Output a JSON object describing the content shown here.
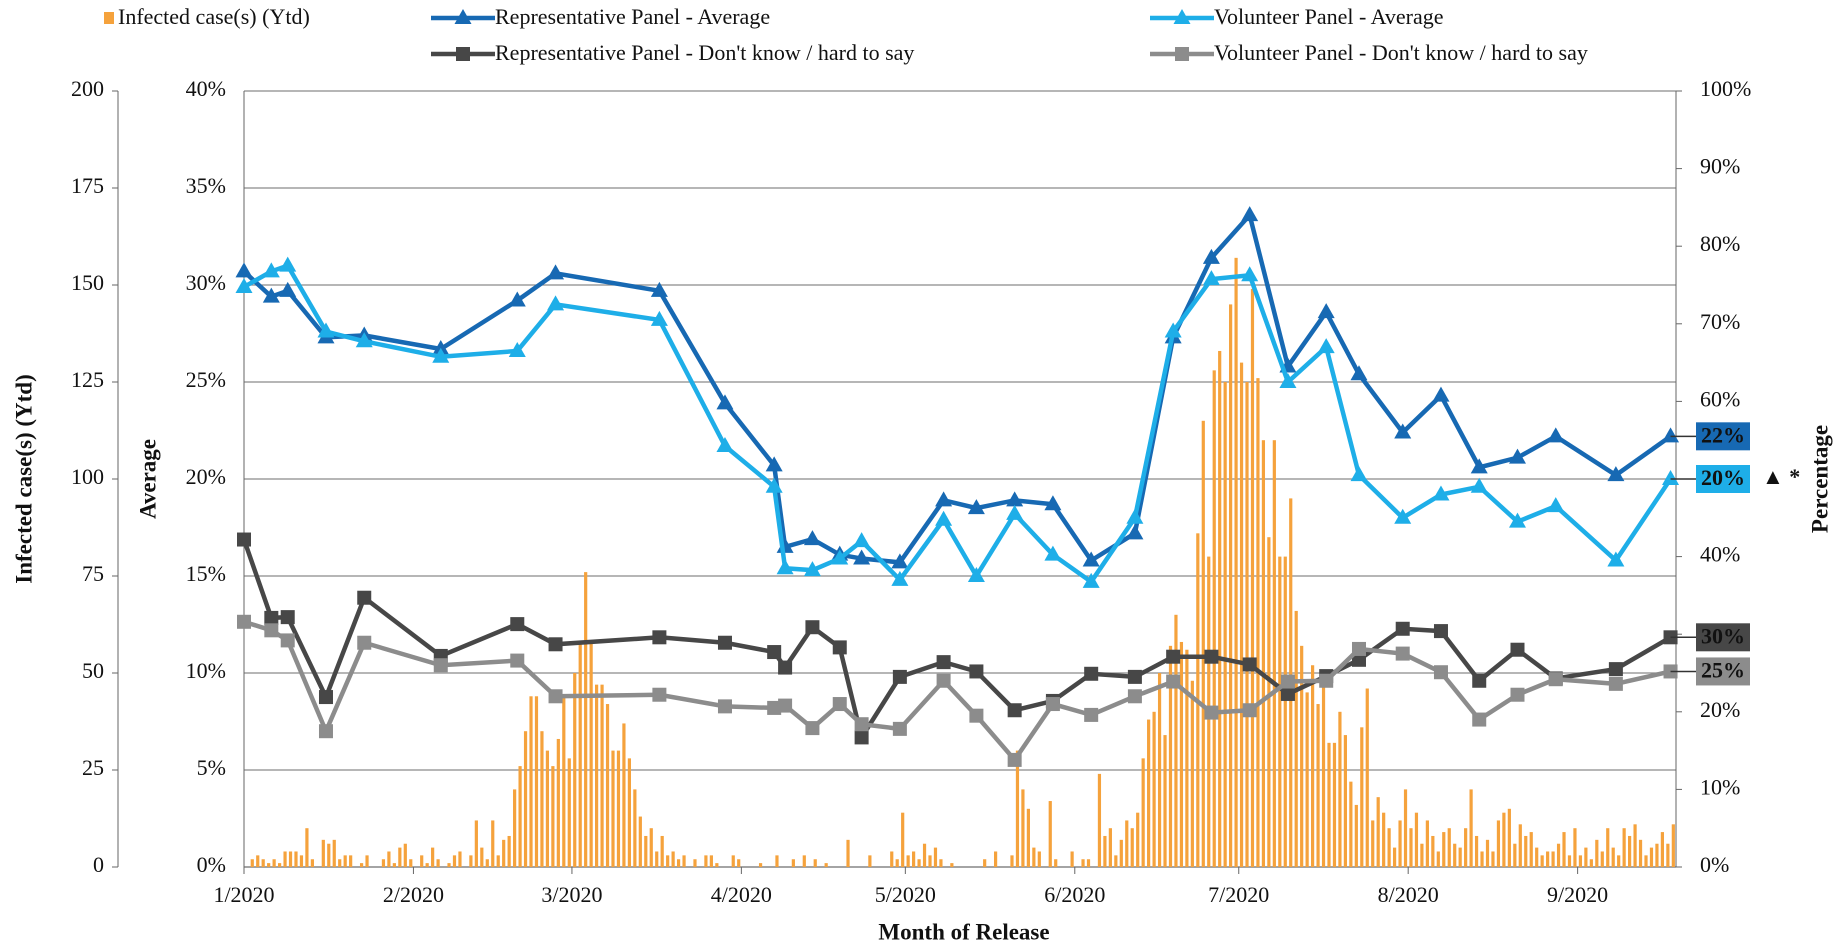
{
  "chart_data": {
    "type": "combo",
    "xlabel": "Month of Release",
    "ylabel": "Infected case(s) (Ytd)",
    "y2label": "Average",
    "y3label": "Percentage",
    "annotation": "▲ *",
    "grid": true,
    "xlim": [
      0,
      262
    ],
    "xticks": [
      {
        "value": 0,
        "label": "1/2020"
      },
      {
        "value": 31,
        "label": "2/2020"
      },
      {
        "value": 60,
        "label": "3/2020"
      },
      {
        "value": 91,
        "label": "4/2020"
      },
      {
        "value": 121,
        "label": "5/2020"
      },
      {
        "value": 152,
        "label": "6/2020"
      },
      {
        "value": 182,
        "label": "7/2020"
      },
      {
        "value": 213,
        "label": "8/2020"
      },
      {
        "value": 244,
        "label": "9/2020"
      }
    ],
    "ylim": [
      0,
      200
    ],
    "yticks": [
      0,
      25,
      50,
      75,
      100,
      125,
      150,
      175,
      200
    ],
    "y2lim": [
      0,
      40
    ],
    "y2ticks": [
      {
        "value": 0,
        "label": "0%"
      },
      {
        "value": 5,
        "label": "5%"
      },
      {
        "value": 10,
        "label": "10%"
      },
      {
        "value": 15,
        "label": "15%"
      },
      {
        "value": 20,
        "label": "20%"
      },
      {
        "value": 25,
        "label": "25%"
      },
      {
        "value": 30,
        "label": "30%"
      },
      {
        "value": 35,
        "label": "35%"
      },
      {
        "value": 40,
        "label": "40%"
      }
    ],
    "y3lim": [
      0,
      100
    ],
    "y3ticks": [
      {
        "value": 0,
        "label": "0%"
      },
      {
        "value": 10,
        "label": "10%"
      },
      {
        "value": 20,
        "label": "20%"
      },
      {
        "value": 30,
        "label": "30%"
      },
      {
        "value": 40,
        "label": "40%"
      },
      {
        "value": 50,
        "label": "50%"
      },
      {
        "value": 60,
        "label": "60%"
      },
      {
        "value": 70,
        "label": "70%"
      },
      {
        "value": 80,
        "label": "80%"
      },
      {
        "value": 90,
        "label": "90%"
      },
      {
        "value": 100,
        "label": "100%"
      }
    ],
    "series": [
      {
        "name": "Infected case(s) (Ytd)",
        "type": "bar",
        "axis": "y",
        "color": "#f5a23c",
        "x": [
          0,
          1,
          2,
          3,
          4,
          5,
          6,
          7,
          8,
          9,
          10,
          11,
          12,
          13,
          14,
          15,
          16,
          17,
          18,
          19,
          20,
          21,
          22,
          23,
          24,
          25,
          26,
          27,
          28,
          29,
          30,
          31,
          32,
          33,
          34,
          35,
          36,
          37,
          38,
          39,
          40,
          41,
          42,
          43,
          44,
          45,
          46,
          47,
          48,
          49,
          50,
          51,
          52,
          53,
          54,
          55,
          56,
          57,
          58,
          59,
          60,
          61,
          62,
          63,
          64,
          65,
          66,
          67,
          68,
          69,
          70,
          71,
          72,
          73,
          74,
          75,
          76,
          77,
          78,
          79,
          80,
          81,
          82,
          83,
          84,
          85,
          86,
          87,
          88,
          89,
          90,
          91,
          92,
          93,
          94,
          95,
          96,
          97,
          98,
          99,
          100,
          101,
          102,
          103,
          104,
          105,
          106,
          107,
          108,
          109,
          110,
          111,
          112,
          113,
          114,
          115,
          116,
          117,
          118,
          119,
          120,
          121,
          122,
          123,
          124,
          125,
          126,
          127,
          128,
          129,
          130,
          131,
          132,
          133,
          134,
          135,
          136,
          137,
          138,
          139,
          140,
          141,
          142,
          143,
          144,
          145,
          146,
          147,
          148,
          149,
          150,
          151,
          152,
          153,
          154,
          155,
          156,
          157,
          158,
          159,
          160,
          161,
          162,
          163,
          164,
          165,
          166,
          167,
          168,
          169,
          170,
          171,
          172,
          173,
          174,
          175,
          176,
          177,
          178,
          179,
          180,
          181,
          182,
          183,
          184,
          185,
          186,
          187,
          188,
          189,
          190,
          191,
          192,
          193,
          194,
          195,
          196,
          197,
          198,
          199,
          200,
          201,
          202,
          203,
          204,
          205,
          206,
          207,
          208,
          209,
          210,
          211,
          212,
          213,
          214,
          215,
          216,
          217,
          218,
          219,
          220,
          221,
          222,
          223,
          224,
          225,
          226,
          227,
          228,
          229,
          230,
          231,
          232,
          233,
          234,
          235,
          236,
          237,
          238,
          239,
          240,
          241,
          242,
          243,
          244,
          245,
          246,
          247,
          248,
          249,
          250,
          251,
          252,
          253,
          254,
          255,
          256,
          257,
          258,
          259,
          260,
          261
        ],
        "values": [
          0,
          2,
          3,
          2,
          1,
          2,
          1,
          4,
          4,
          4,
          3,
          10,
          2,
          0,
          7,
          6,
          7,
          2,
          3,
          3,
          0,
          1,
          3,
          0,
          0,
          2,
          4,
          1,
          5,
          6,
          2,
          0,
          3,
          1,
          5,
          2,
          0,
          1,
          3,
          4,
          0,
          3,
          12,
          5,
          2,
          12,
          3,
          7,
          8,
          20,
          26,
          35,
          44,
          44,
          35,
          30,
          26,
          33,
          44,
          28,
          50,
          58,
          76,
          58,
          47,
          47,
          42,
          30,
          30,
          37,
          28,
          20,
          13,
          8,
          10,
          4,
          8,
          3,
          4,
          2,
          3,
          0,
          2,
          0,
          3,
          3,
          1,
          0,
          0,
          3,
          2,
          0,
          0,
          0,
          1,
          0,
          0,
          3,
          0,
          0,
          2,
          0,
          3,
          0,
          2,
          0,
          1,
          0,
          0,
          0,
          7,
          0,
          0,
          0,
          3,
          0,
          0,
          0,
          4,
          2,
          14,
          3,
          4,
          2,
          6,
          3,
          5,
          2,
          0,
          1,
          0,
          0,
          0,
          0,
          0,
          2,
          0,
          4,
          0,
          0,
          3,
          30,
          20,
          15,
          5,
          4,
          0,
          17,
          2,
          0,
          0,
          4,
          0,
          2,
          2,
          0,
          24,
          8,
          10,
          3,
          7,
          12,
          10,
          14,
          28,
          38,
          40,
          50,
          34,
          57,
          65,
          58,
          56,
          48,
          86,
          115,
          80,
          128,
          133,
          125,
          145,
          157,
          130,
          125,
          149,
          126,
          110,
          85,
          110,
          80,
          80,
          95,
          66,
          57,
          45,
          52,
          42,
          48,
          32,
          32,
          40,
          34,
          22,
          16,
          36,
          46,
          12,
          18,
          14,
          10,
          5,
          12,
          20,
          10,
          14,
          6,
          12,
          8,
          4,
          9,
          10,
          6,
          5,
          10,
          20,
          8,
          4,
          7,
          4,
          12,
          14,
          15,
          6,
          11,
          8,
          9,
          5,
          3,
          4,
          4,
          6,
          9,
          3,
          10,
          3,
          5,
          2,
          7,
          4,
          10,
          5,
          3,
          10,
          8,
          11,
          7,
          3,
          5,
          6,
          9,
          6,
          11
        ]
      },
      {
        "name": "Representative Panel - Average",
        "type": "line",
        "marker": "triangle",
        "axis": "y2",
        "color": "#1769b3",
        "x": [
          0,
          5,
          8,
          15,
          22,
          36,
          50,
          57,
          76,
          88,
          97,
          99,
          104,
          109,
          113,
          120,
          128,
          134,
          141,
          148,
          155,
          163,
          170,
          177,
          184,
          191,
          198,
          204,
          212,
          219,
          226,
          233,
          240,
          251,
          261
        ],
        "values": [
          30.7,
          29.4,
          29.7,
          27.3,
          27.4,
          26.7,
          29.2,
          30.6,
          29.7,
          23.9,
          20.7,
          16.5,
          16.9,
          16.1,
          15.9,
          15.7,
          18.9,
          18.5,
          18.9,
          18.7,
          15.8,
          17.2,
          27.3,
          31.4,
          33.6,
          25.8,
          28.6,
          25.4,
          22.4,
          24.3,
          20.6,
          21.1,
          22.2,
          20.2,
          22.2
        ],
        "last_label": "22%"
      },
      {
        "name": "Volunteer Panel - Average",
        "type": "line",
        "marker": "triangle",
        "axis": "y2",
        "color": "#1eaee8",
        "x": [
          0,
          5,
          8,
          15,
          22,
          36,
          50,
          57,
          76,
          88,
          97,
          99,
          104,
          109,
          113,
          120,
          128,
          134,
          141,
          148,
          155,
          163,
          170,
          177,
          184,
          191,
          198,
          204,
          212,
          219,
          226,
          233,
          240,
          251,
          261
        ],
        "values": [
          29.9,
          30.7,
          31.0,
          27.6,
          27.1,
          26.3,
          26.6,
          29.0,
          28.2,
          21.7,
          19.6,
          15.4,
          15.3,
          15.9,
          16.8,
          14.8,
          17.9,
          15.0,
          18.2,
          16.1,
          14.7,
          18.0,
          27.6,
          30.3,
          30.5,
          25.0,
          26.8,
          20.2,
          18.0,
          19.2,
          19.6,
          17.8,
          18.6,
          15.8,
          20.0
        ],
        "last_label": "20%"
      },
      {
        "name": "Representative Panel - Don't know / hard to say",
        "type": "line",
        "marker": "square",
        "axis": "y3",
        "color": "#474747",
        "x": [
          0,
          5,
          8,
          15,
          22,
          36,
          50,
          57,
          76,
          88,
          97,
          99,
          104,
          109,
          113,
          120,
          128,
          134,
          141,
          148,
          155,
          163,
          170,
          177,
          184,
          191,
          198,
          204,
          212,
          219,
          226,
          233,
          240,
          251,
          261
        ],
        "values": [
          42.2,
          32.1,
          32.2,
          21.9,
          34.7,
          27.2,
          31.3,
          28.7,
          29.6,
          28.9,
          27.7,
          25.7,
          30.9,
          28.3,
          16.7,
          24.5,
          26.4,
          25.2,
          20.2,
          21.4,
          24.9,
          24.5,
          27.1,
          27.1,
          26.1,
          22.3,
          24.6,
          26.7,
          30.7,
          30.4,
          24.0,
          28.0,
          24.3,
          25.5,
          29.6
        ],
        "last_label": "30%"
      },
      {
        "name": "Volunteer Panel - Don't know / hard to say",
        "type": "line",
        "marker": "square",
        "axis": "y3",
        "color": "#8c8c8c",
        "x": [
          0,
          5,
          8,
          15,
          22,
          36,
          50,
          57,
          76,
          88,
          97,
          99,
          104,
          109,
          113,
          120,
          128,
          134,
          141,
          148,
          155,
          163,
          170,
          177,
          184,
          191,
          198,
          204,
          212,
          219,
          226,
          233,
          240,
          251,
          261
        ],
        "values": [
          31.6,
          30.5,
          29.2,
          17.5,
          28.9,
          26.0,
          26.6,
          22.0,
          22.2,
          20.7,
          20.5,
          20.8,
          17.9,
          21.0,
          18.4,
          17.8,
          24.0,
          19.5,
          13.8,
          21.0,
          19.6,
          22.0,
          23.9,
          19.9,
          20.2,
          23.9,
          24.0,
          28.1,
          27.5,
          25.1,
          19.0,
          22.2,
          24.2,
          23.6,
          25.2
        ],
        "last_label": "25%"
      }
    ]
  }
}
